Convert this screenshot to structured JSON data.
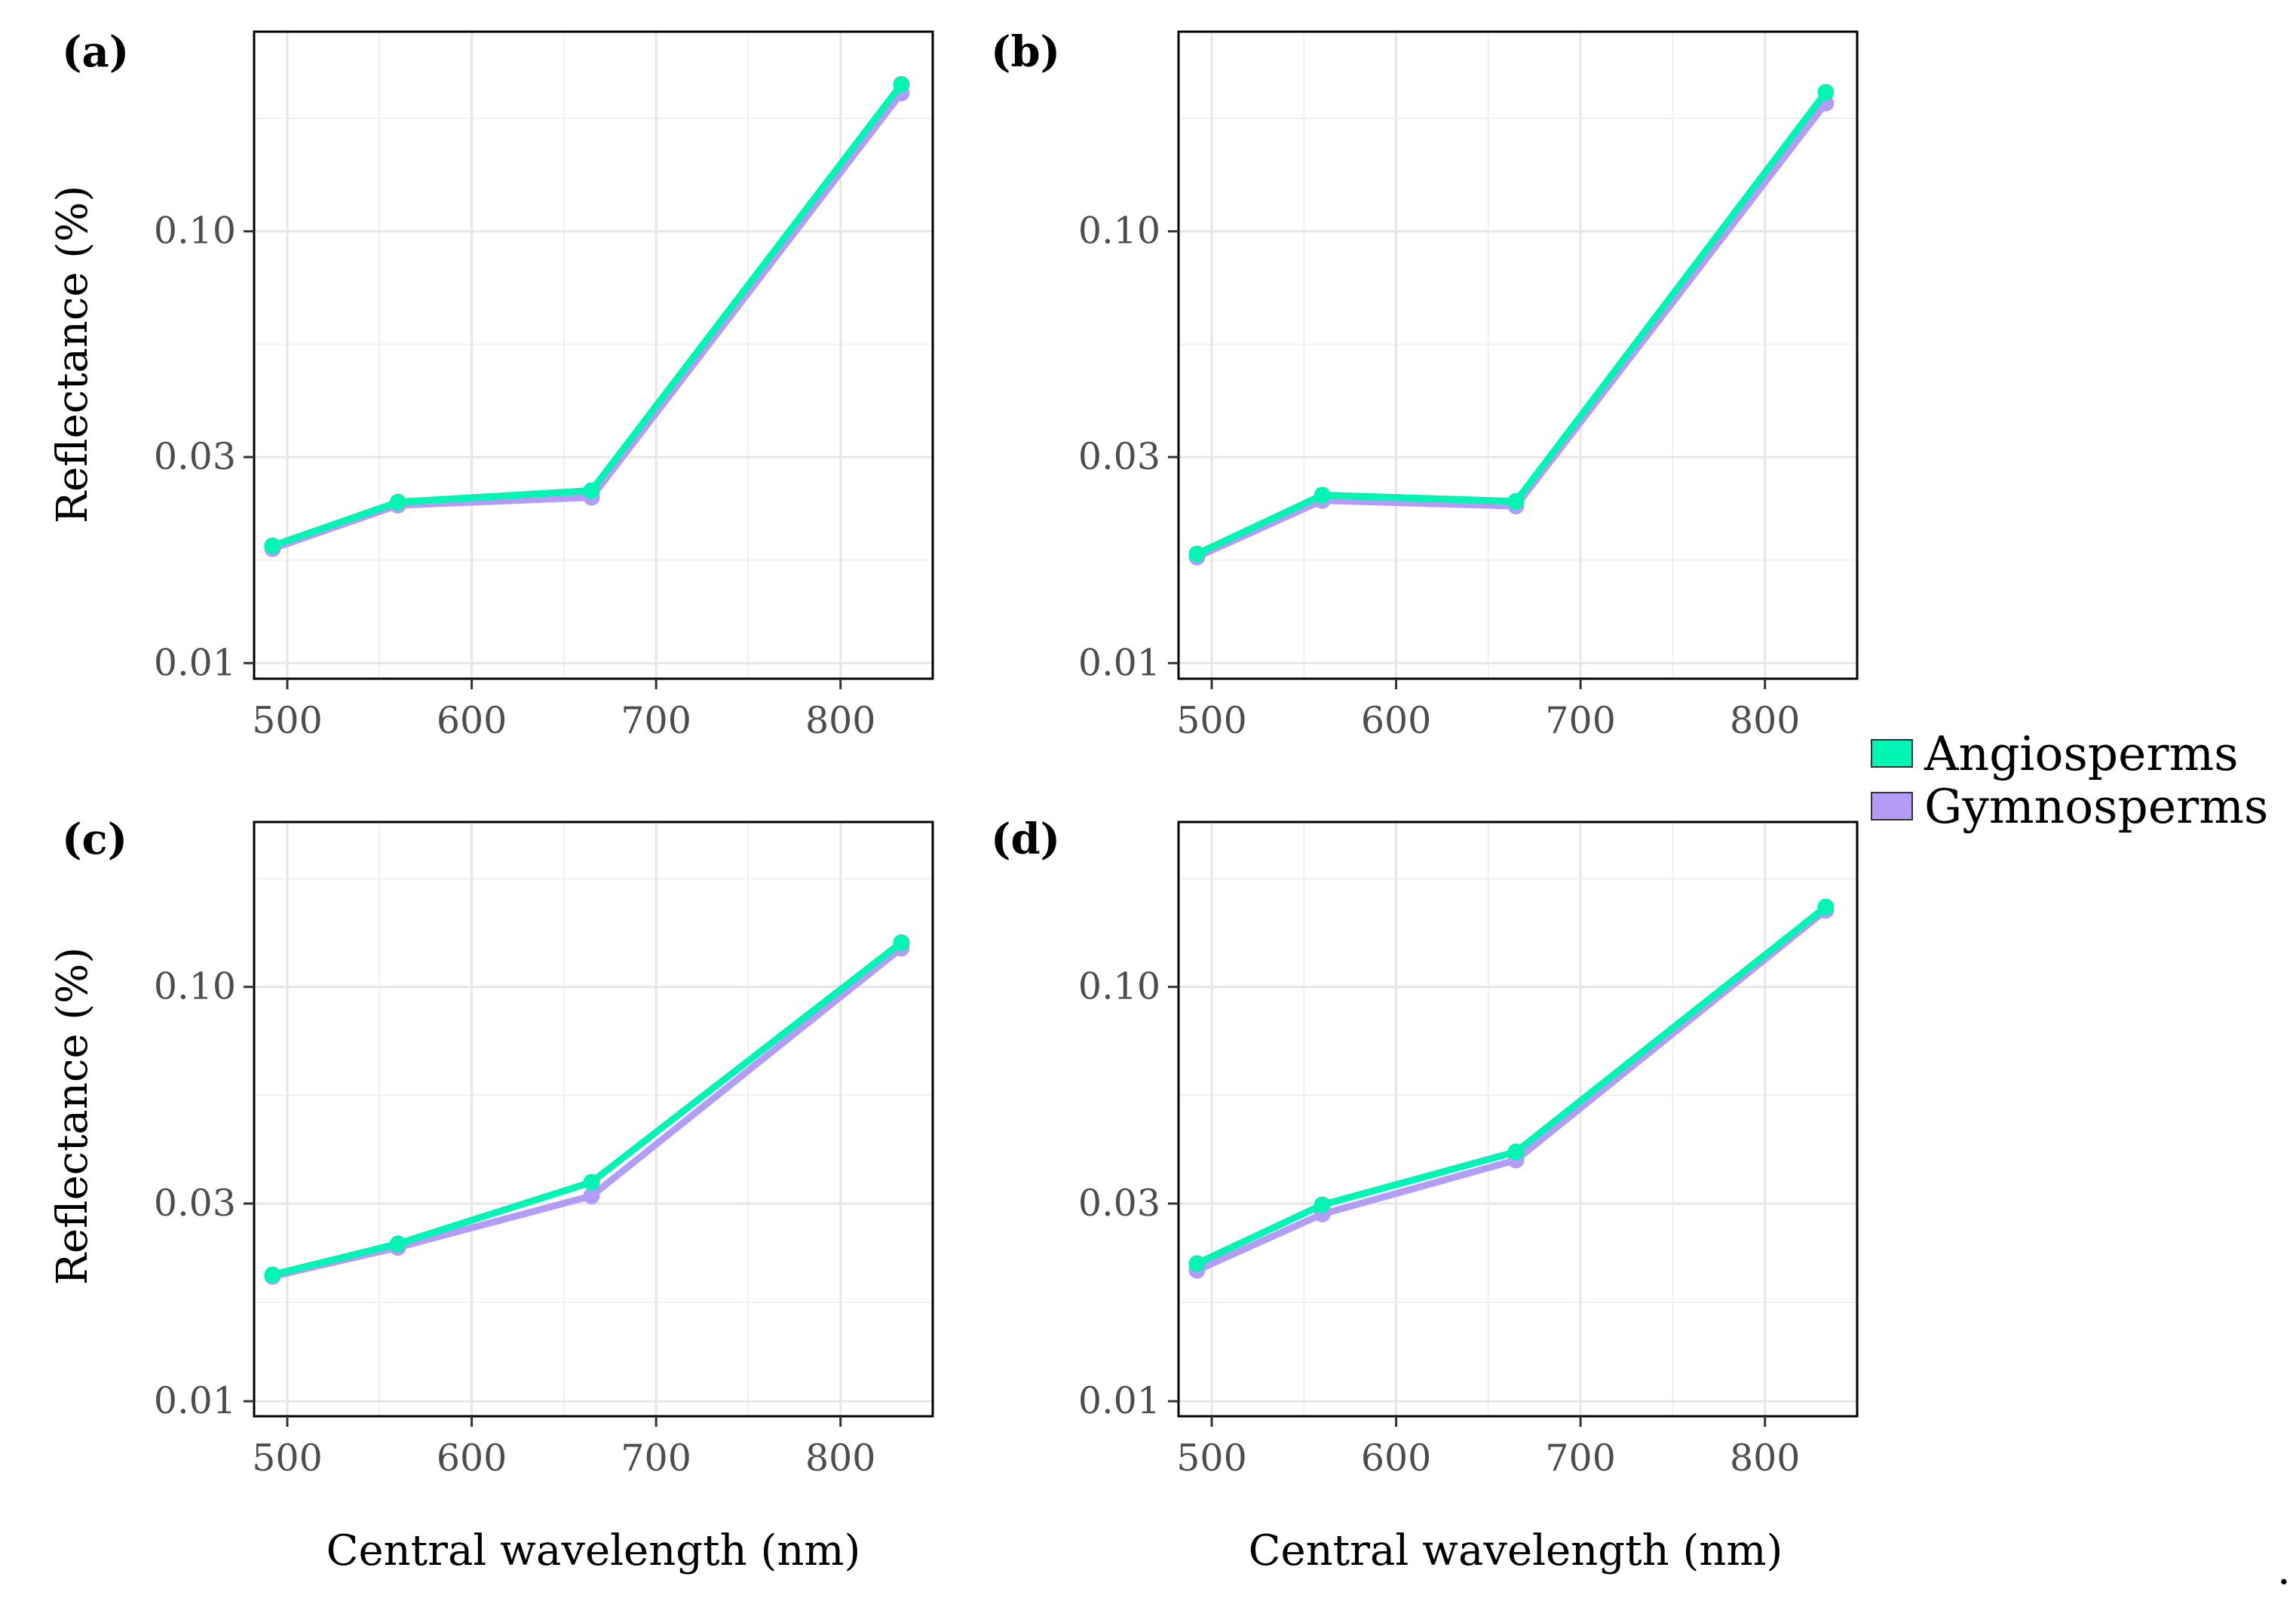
{
  "legend": {
    "items": [
      {
        "label": "Angiosperms",
        "color": "#00f5b4"
      },
      {
        "label": "Gymnosperms",
        "color": "#b39cf5"
      }
    ]
  },
  "trailing_mark": ".",
  "chart_data": [
    {
      "type": "line",
      "panel_label": "(a)",
      "xlabel": "",
      "ylabel": "Reflectance (%)",
      "x": [
        492,
        560,
        665,
        833
      ],
      "xlim": [
        482,
        850
      ],
      "xticks": [
        500,
        600,
        700,
        800
      ],
      "yscale": "log",
      "ylim": [
        0.0092,
        0.29
      ],
      "yticks": [
        0.01,
        0.03,
        0.1
      ],
      "ytick_labels": [
        "0.01",
        "0.03",
        "0.10"
      ],
      "grid": true,
      "series": [
        {
          "name": "Angiosperms",
          "color": "#00f5b4",
          "values": [
            0.0187,
            0.0236,
            0.0251,
            0.219
          ]
        },
        {
          "name": "Gymnosperms",
          "color": "#b39cf5",
          "values": [
            0.0184,
            0.0232,
            0.0242,
            0.209
          ]
        }
      ]
    },
    {
      "type": "line",
      "panel_label": "(b)",
      "xlabel": "",
      "ylabel": "",
      "x": [
        492,
        560,
        665,
        833
      ],
      "xlim": [
        482,
        850
      ],
      "xticks": [
        500,
        600,
        700,
        800
      ],
      "yscale": "log",
      "ylim": [
        0.0092,
        0.29
      ],
      "yticks": [
        0.01,
        0.03,
        0.1
      ],
      "ytick_labels": [
        "0.01",
        "0.03",
        "0.10"
      ],
      "grid": true,
      "series": [
        {
          "name": "Angiosperms",
          "color": "#00f5b4",
          "values": [
            0.0179,
            0.0245,
            0.0237,
            0.21
          ]
        },
        {
          "name": "Gymnosperms",
          "color": "#b39cf5",
          "values": [
            0.0176,
            0.0238,
            0.0231,
            0.198
          ]
        }
      ]
    },
    {
      "type": "line",
      "panel_label": "(c)",
      "xlabel": "Central wavelength (nm)",
      "ylabel": "Reflectance (%)",
      "x": [
        492,
        560,
        665,
        833
      ],
      "xlim": [
        482,
        850
      ],
      "xticks": [
        500,
        600,
        700,
        800
      ],
      "yscale": "log",
      "ylim": [
        0.0092,
        0.25
      ],
      "yticks": [
        0.01,
        0.03,
        0.1
      ],
      "ytick_labels": [
        "0.01",
        "0.03",
        "0.10"
      ],
      "grid": true,
      "series": [
        {
          "name": "Angiosperms",
          "color": "#00f5b4",
          "values": [
            0.0202,
            0.024,
            0.0338,
            0.128
          ]
        },
        {
          "name": "Gymnosperms",
          "color": "#b39cf5",
          "values": [
            0.02,
            0.0235,
            0.0313,
            0.124
          ]
        }
      ]
    },
    {
      "type": "line",
      "panel_label": "(d)",
      "xlabel": "Central wavelength (nm)",
      "ylabel": "",
      "x": [
        492,
        560,
        665,
        833
      ],
      "xlim": [
        482,
        850
      ],
      "xticks": [
        500,
        600,
        700,
        800
      ],
      "yscale": "log",
      "ylim": [
        0.0092,
        0.25
      ],
      "yticks": [
        0.01,
        0.03,
        0.1
      ],
      "ytick_labels": [
        "0.01",
        "0.03",
        "0.10"
      ],
      "grid": true,
      "series": [
        {
          "name": "Angiosperms",
          "color": "#00f5b4",
          "values": [
            0.0215,
            0.0298,
            0.04,
            0.156
          ]
        },
        {
          "name": "Gymnosperms",
          "color": "#b39cf5",
          "values": [
            0.0207,
            0.0283,
            0.0382,
            0.153
          ]
        }
      ]
    }
  ]
}
